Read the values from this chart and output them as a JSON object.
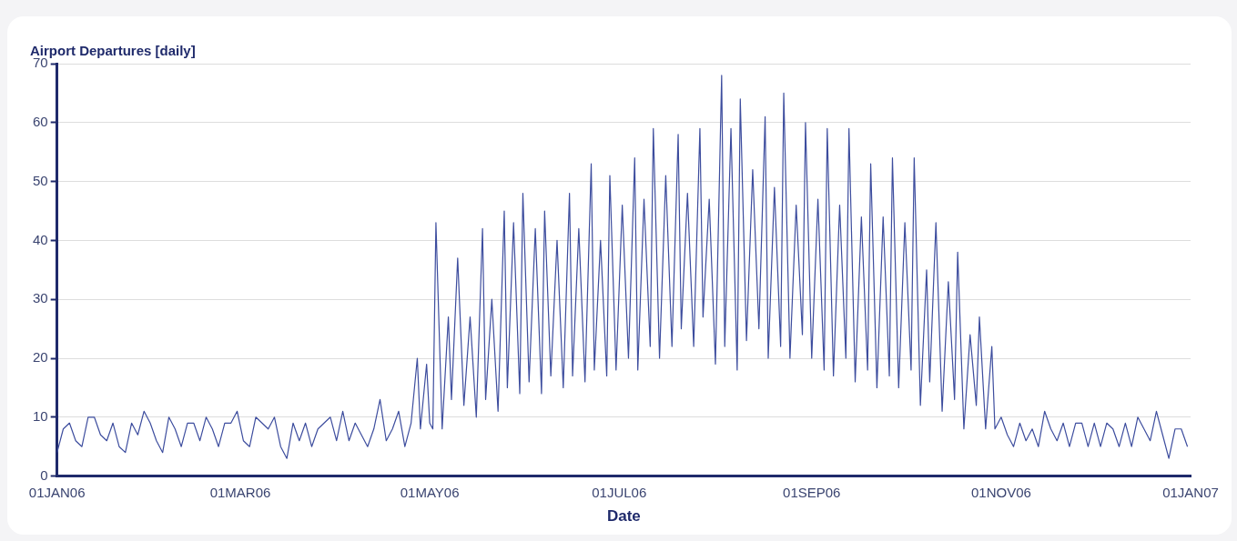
{
  "chart_data": {
    "type": "line",
    "ylabel": "Airport Departures [daily]",
    "xlabel": "Date",
    "x": [
      "2006-01-01",
      "2006-01-03",
      "2006-01-05",
      "2006-01-07",
      "2006-01-09",
      "2006-01-11",
      "2006-01-13",
      "2006-01-15",
      "2006-01-17",
      "2006-01-19",
      "2006-01-21",
      "2006-01-23",
      "2006-01-25",
      "2006-01-27",
      "2006-01-29",
      "2006-01-31",
      "2006-02-02",
      "2006-02-04",
      "2006-02-06",
      "2006-02-08",
      "2006-02-10",
      "2006-02-12",
      "2006-02-14",
      "2006-02-16",
      "2006-02-18",
      "2006-02-20",
      "2006-02-22",
      "2006-02-24",
      "2006-02-26",
      "2006-02-28",
      "2006-03-02",
      "2006-03-04",
      "2006-03-06",
      "2006-03-08",
      "2006-03-10",
      "2006-03-12",
      "2006-03-14",
      "2006-03-16",
      "2006-03-18",
      "2006-03-20",
      "2006-03-22",
      "2006-03-24",
      "2006-03-26",
      "2006-03-28",
      "2006-03-30",
      "2006-04-01",
      "2006-04-03",
      "2006-04-05",
      "2006-04-07",
      "2006-04-09",
      "2006-04-11",
      "2006-04-13",
      "2006-04-15",
      "2006-04-17",
      "2006-04-19",
      "2006-04-21",
      "2006-04-23",
      "2006-04-25",
      "2006-04-27",
      "2006-04-28",
      "2006-04-30",
      "2006-05-01",
      "2006-05-02",
      "2006-05-03",
      "2006-05-05",
      "2006-05-07",
      "2006-05-08",
      "2006-05-10",
      "2006-05-12",
      "2006-05-14",
      "2006-05-16",
      "2006-05-18",
      "2006-05-19",
      "2006-05-21",
      "2006-05-23",
      "2006-05-25",
      "2006-05-26",
      "2006-05-28",
      "2006-05-30",
      "2006-05-31",
      "2006-06-02",
      "2006-06-04",
      "2006-06-06",
      "2006-06-07",
      "2006-06-09",
      "2006-06-11",
      "2006-06-13",
      "2006-06-15",
      "2006-06-16",
      "2006-06-18",
      "2006-06-20",
      "2006-06-22",
      "2006-06-23",
      "2006-06-25",
      "2006-06-27",
      "2006-06-28",
      "2006-06-30",
      "2006-07-02",
      "2006-07-04",
      "2006-07-06",
      "2006-07-07",
      "2006-07-09",
      "2006-07-11",
      "2006-07-12",
      "2006-07-14",
      "2006-07-16",
      "2006-07-18",
      "2006-07-20",
      "2006-07-21",
      "2006-07-23",
      "2006-07-25",
      "2006-07-27",
      "2006-07-28",
      "2006-07-30",
      "2006-08-01",
      "2006-08-03",
      "2006-08-04",
      "2006-08-06",
      "2006-08-08",
      "2006-08-09",
      "2006-08-11",
      "2006-08-13",
      "2006-08-15",
      "2006-08-17",
      "2006-08-18",
      "2006-08-20",
      "2006-08-22",
      "2006-08-23",
      "2006-08-25",
      "2006-08-27",
      "2006-08-29",
      "2006-08-30",
      "2006-09-01",
      "2006-09-03",
      "2006-09-05",
      "2006-09-06",
      "2006-09-08",
      "2006-09-10",
      "2006-09-12",
      "2006-09-13",
      "2006-09-15",
      "2006-09-17",
      "2006-09-19",
      "2006-09-20",
      "2006-09-22",
      "2006-09-24",
      "2006-09-26",
      "2006-09-27",
      "2006-09-29",
      "2006-10-01",
      "2006-10-03",
      "2006-10-04",
      "2006-10-06",
      "2006-10-08",
      "2006-10-09",
      "2006-10-11",
      "2006-10-13",
      "2006-10-15",
      "2006-10-17",
      "2006-10-18",
      "2006-10-20",
      "2006-10-22",
      "2006-10-24",
      "2006-10-25",
      "2006-10-27",
      "2006-10-29",
      "2006-10-30",
      "2006-11-01",
      "2006-11-03",
      "2006-11-05",
      "2006-11-07",
      "2006-11-09",
      "2006-11-11",
      "2006-11-13",
      "2006-11-15",
      "2006-11-17",
      "2006-11-19",
      "2006-11-21",
      "2006-11-23",
      "2006-11-25",
      "2006-11-27",
      "2006-11-29",
      "2006-12-01",
      "2006-12-03",
      "2006-12-05",
      "2006-12-07",
      "2006-12-09",
      "2006-12-11",
      "2006-12-13",
      "2006-12-15",
      "2006-12-17",
      "2006-12-19",
      "2006-12-21",
      "2006-12-23",
      "2006-12-25",
      "2006-12-27",
      "2006-12-29",
      "2006-12-31"
    ],
    "values": [
      4,
      8,
      9,
      6,
      5,
      10,
      10,
      7,
      6,
      9,
      5,
      4,
      9,
      7,
      11,
      9,
      6,
      4,
      10,
      8,
      5,
      9,
      9,
      6,
      10,
      8,
      5,
      9,
      9,
      11,
      6,
      5,
      10,
      9,
      8,
      10,
      5,
      3,
      9,
      6,
      9,
      5,
      8,
      9,
      10,
      6,
      11,
      6,
      9,
      7,
      5,
      8,
      13,
      6,
      8,
      11,
      5,
      9,
      20,
      8,
      19,
      9,
      8,
      43,
      8,
      27,
      13,
      37,
      12,
      27,
      10,
      42,
      13,
      30,
      11,
      45,
      15,
      43,
      14,
      48,
      16,
      42,
      14,
      45,
      17,
      40,
      15,
      48,
      17,
      42,
      16,
      53,
      18,
      40,
      17,
      51,
      18,
      46,
      20,
      54,
      18,
      47,
      22,
      59,
      20,
      51,
      22,
      58,
      25,
      48,
      22,
      59,
      27,
      47,
      19,
      68,
      22,
      59,
      18,
      64,
      23,
      52,
      25,
      61,
      20,
      49,
      22,
      65,
      20,
      46,
      24,
      60,
      20,
      47,
      18,
      59,
      17,
      46,
      20,
      59,
      16,
      44,
      18,
      53,
      15,
      44,
      17,
      54,
      15,
      43,
      18,
      54,
      12,
      35,
      16,
      43,
      11,
      33,
      13,
      38,
      8,
      24,
      12,
      27,
      8,
      22,
      8,
      10,
      7,
      5,
      9,
      6,
      8,
      5,
      11,
      8,
      6,
      9,
      5,
      9,
      9,
      5,
      9,
      5,
      9,
      8,
      5,
      9,
      5,
      10,
      8,
      6,
      11,
      7,
      3,
      8,
      8,
      5
    ],
    "color": "#3d4d9e",
    "xlim": [
      "2006-01-01",
      "2007-01-01"
    ],
    "xticks": [
      {
        "value": "2006-01-01",
        "label": "01JAN06"
      },
      {
        "value": "2006-03-01",
        "label": "01MAR06"
      },
      {
        "value": "2006-05-01",
        "label": "01MAY06"
      },
      {
        "value": "2006-07-01",
        "label": "01JUL06"
      },
      {
        "value": "2006-09-01",
        "label": "01SEP06"
      },
      {
        "value": "2006-11-01",
        "label": "01NOV06"
      },
      {
        "value": "2007-01-01",
        "label": "01JAN07"
      }
    ],
    "ylim": [
      0,
      70
    ],
    "yticks": [
      0,
      10,
      20,
      30,
      40,
      50,
      60,
      70
    ],
    "grid": "y",
    "legend": false,
    "marker": "none",
    "line_style": "solid"
  }
}
